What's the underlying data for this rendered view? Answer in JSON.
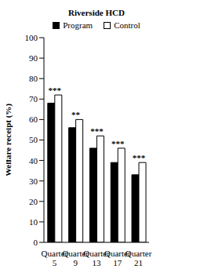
{
  "chart_data": {
    "type": "bar",
    "title": "Riverside HCD",
    "y_label": "Welfare receipt (%)",
    "categories": [
      "Quarter 5",
      "Quarter 9",
      "Quarter 13",
      "Quarter 17",
      "Quarter 21"
    ],
    "series": [
      {
        "name": "Program",
        "color": "#000000",
        "values": [
          68,
          56,
          46,
          39,
          33
        ]
      },
      {
        "name": "Control",
        "color": "#ffffff",
        "values": [
          72,
          60,
          52,
          46,
          39
        ]
      }
    ],
    "annotations": [
      "***",
      "**",
      "***",
      "***",
      "***"
    ],
    "ylim": [
      0,
      100
    ],
    "yticks": [
      0,
      10,
      20,
      30,
      40,
      50,
      60,
      70,
      80,
      90,
      100
    ],
    "grid": false,
    "legend": "top"
  }
}
